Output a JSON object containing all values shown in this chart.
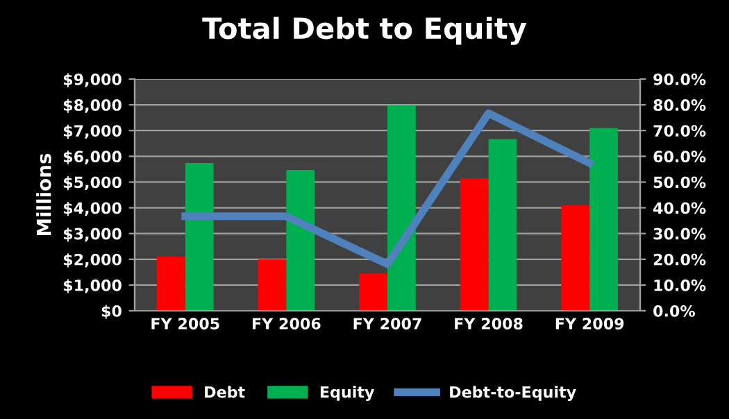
{
  "chart_data": {
    "type": "bar",
    "title": "Total Debt to Equity",
    "ylabel": "Millions",
    "categories": [
      "FY 2005",
      "FY 2006",
      "FY 2007",
      "FY 2008",
      "FY 2009"
    ],
    "series": [
      {
        "name": "Debt",
        "color": "#ff0000",
        "values": [
          2100,
          2000,
          1450,
          5150,
          4100
        ]
      },
      {
        "name": "Equity",
        "color": "#00b050",
        "values": [
          5740,
          5470,
          7980,
          6670,
          7100
        ]
      },
      {
        "name": "Debt-to-Equity",
        "type": "line",
        "axis": "y2",
        "color": "#4f81bd",
        "values": [
          36.7,
          36.7,
          18.1,
          76.7,
          57.4
        ]
      }
    ],
    "ylim": [
      0,
      9000
    ],
    "yticks": [
      {
        "value": 0,
        "label": "$0"
      },
      {
        "value": 1000,
        "label": "$1,000"
      },
      {
        "value": 2000,
        "label": "$2,000"
      },
      {
        "value": 3000,
        "label": "$3,000"
      },
      {
        "value": 4000,
        "label": "$4,000"
      },
      {
        "value": 5000,
        "label": "$5,000"
      },
      {
        "value": 6000,
        "label": "$6,000"
      },
      {
        "value": 7000,
        "label": "$7,000"
      },
      {
        "value": 8000,
        "label": "$8,000"
      },
      {
        "value": 9000,
        "label": "$9,000"
      }
    ],
    "y2lim": [
      0,
      90
    ],
    "y2ticks": [
      {
        "value": 0,
        "label": "0.0%"
      },
      {
        "value": 10,
        "label": "10.0%"
      },
      {
        "value": 20,
        "label": "20.0%"
      },
      {
        "value": 30,
        "label": "30.0%"
      },
      {
        "value": 40,
        "label": "40.0%"
      },
      {
        "value": 50,
        "label": "50.0%"
      },
      {
        "value": 60,
        "label": "60.0%"
      },
      {
        "value": 70,
        "label": "70.0%"
      },
      {
        "value": 80,
        "label": "80.0%"
      },
      {
        "value": 90,
        "label": "90.0%"
      }
    ],
    "grid": "y",
    "legend": "bottom",
    "line_style": "solid",
    "marker": "none"
  }
}
